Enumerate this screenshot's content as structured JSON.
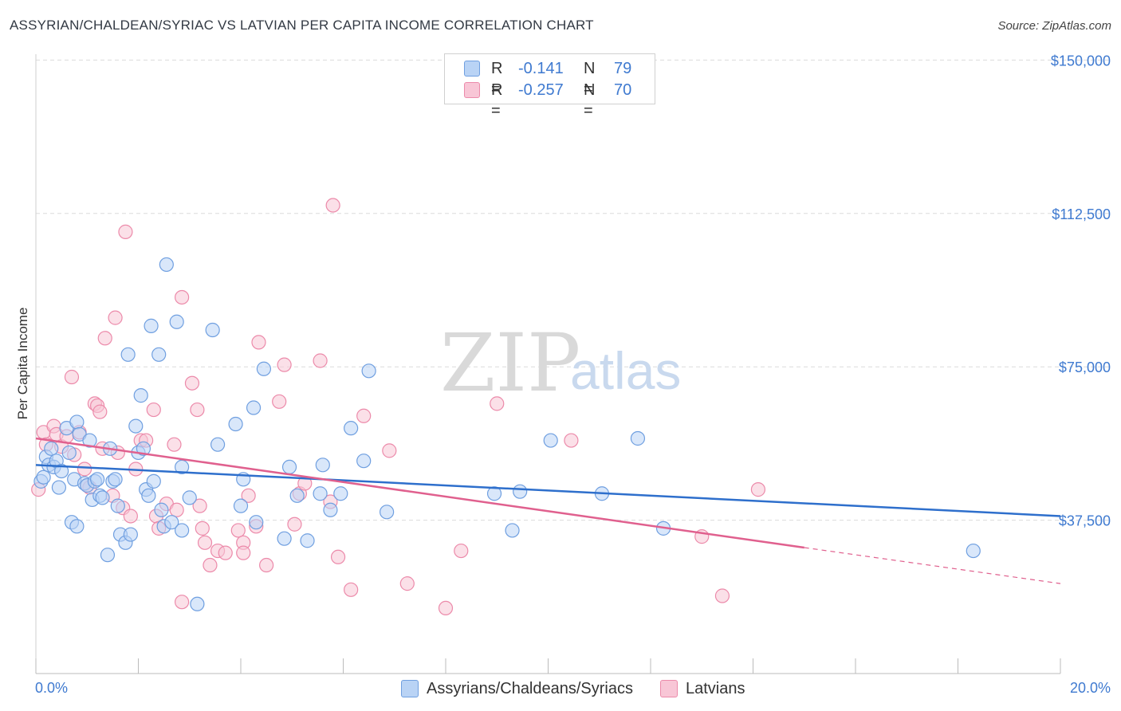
{
  "title": "ASSYRIAN/CHALDEAN/SYRIAC VS LATVIAN PER CAPITA INCOME CORRELATION CHART",
  "source": "Source: ZipAtlas.com",
  "watermark": {
    "zip": "ZIP",
    "atlas": "atlas"
  },
  "legend": {
    "rows": [
      {
        "r_label": "R =",
        "r_value": "-0.141",
        "n_label": "N =",
        "n_value": "79"
      },
      {
        "r_label": "R =",
        "r_value": "-0.257",
        "n_label": "N =",
        "n_value": "70"
      }
    ]
  },
  "bottom_legend": [
    {
      "label": "Assyrians/Chaldeans/Syriacs"
    },
    {
      "label": "Latvians"
    }
  ],
  "colors": {
    "blue_fill": "#b9d3f5",
    "blue_stroke": "#6f9fe0",
    "blue_line": "#2e6fcc",
    "pink_fill": "#f8c6d6",
    "pink_stroke": "#ec8aaa",
    "pink_line": "#e0608e",
    "tick_text": "#3f7ad0",
    "grid": "#dcdcdc"
  },
  "chart_data": {
    "type": "scatter",
    "title": "ASSYRIAN/CHALDEAN/SYRIAC VS LATVIAN PER CAPITA INCOME CORRELATION CHART",
    "xlabel": "",
    "ylabel": "Per Capita Income",
    "xlim": [
      0,
      20
    ],
    "ylim": [
      0,
      153000
    ],
    "x_tick_labels": [
      "0.0%",
      "20.0%"
    ],
    "y_ticks": [
      37500,
      75000,
      112500,
      150000
    ],
    "y_tick_labels": [
      "$37,500",
      "$75,000",
      "$112,500",
      "$150,000"
    ],
    "grid": "horizontal dashed",
    "legend_position": "top-center",
    "series": [
      {
        "name": "Assyrians/Chaldeans/Syriacs",
        "points": [
          [
            0.1,
            47000
          ],
          [
            0.15,
            48000
          ],
          [
            0.2,
            53000
          ],
          [
            0.25,
            51000
          ],
          [
            0.3,
            55000
          ],
          [
            0.35,
            50500
          ],
          [
            0.4,
            52000
          ],
          [
            0.45,
            45500
          ],
          [
            0.5,
            49500
          ],
          [
            0.6,
            60000
          ],
          [
            0.65,
            54000
          ],
          [
            0.7,
            37000
          ],
          [
            0.75,
            47500
          ],
          [
            0.8,
            36000
          ],
          [
            0.8,
            61500
          ],
          [
            0.85,
            58500
          ],
          [
            0.95,
            46500
          ],
          [
            1.0,
            46000
          ],
          [
            1.05,
            57000
          ],
          [
            1.1,
            42500
          ],
          [
            1.15,
            47000
          ],
          [
            1.2,
            47500
          ],
          [
            1.25,
            43500
          ],
          [
            1.3,
            43000
          ],
          [
            1.4,
            29000
          ],
          [
            1.45,
            55000
          ],
          [
            1.5,
            47000
          ],
          [
            1.55,
            47500
          ],
          [
            1.6,
            41000
          ],
          [
            1.65,
            34000
          ],
          [
            1.75,
            32000
          ],
          [
            1.8,
            78000
          ],
          [
            1.85,
            34000
          ],
          [
            1.95,
            60500
          ],
          [
            2.0,
            54000
          ],
          [
            2.05,
            68000
          ],
          [
            2.1,
            55000
          ],
          [
            2.15,
            45000
          ],
          [
            2.2,
            43500
          ],
          [
            2.25,
            85000
          ],
          [
            2.3,
            47000
          ],
          [
            2.4,
            78000
          ],
          [
            2.45,
            40000
          ],
          [
            2.5,
            36000
          ],
          [
            2.55,
            100000
          ],
          [
            2.65,
            37000
          ],
          [
            2.75,
            86000
          ],
          [
            2.85,
            50500
          ],
          [
            2.85,
            35000
          ],
          [
            3.0,
            43000
          ],
          [
            3.15,
            17000
          ],
          [
            3.45,
            84000
          ],
          [
            3.55,
            56000
          ],
          [
            3.9,
            61000
          ],
          [
            4.0,
            41000
          ],
          [
            4.05,
            47500
          ],
          [
            4.25,
            65000
          ],
          [
            4.3,
            37000
          ],
          [
            4.45,
            74500
          ],
          [
            4.85,
            33000
          ],
          [
            4.95,
            50500
          ],
          [
            5.1,
            43500
          ],
          [
            5.3,
            32500
          ],
          [
            5.55,
            44000
          ],
          [
            5.6,
            51000
          ],
          [
            5.75,
            40000
          ],
          [
            5.95,
            44000
          ],
          [
            6.15,
            60000
          ],
          [
            6.4,
            52000
          ],
          [
            6.5,
            74000
          ],
          [
            6.85,
            39500
          ],
          [
            8.95,
            44000
          ],
          [
            9.3,
            35000
          ],
          [
            10.05,
            57000
          ],
          [
            11.05,
            44000
          ],
          [
            11.75,
            57500
          ],
          [
            12.25,
            35500
          ],
          [
            18.3,
            30000
          ],
          [
            9.45,
            44500
          ]
        ]
      },
      {
        "name": "Latvians",
        "points": [
          [
            0.05,
            45000
          ],
          [
            0.15,
            59000
          ],
          [
            0.2,
            56000
          ],
          [
            0.35,
            60500
          ],
          [
            0.4,
            58500
          ],
          [
            0.5,
            55500
          ],
          [
            0.6,
            58000
          ],
          [
            0.7,
            72500
          ],
          [
            0.75,
            53500
          ],
          [
            0.85,
            59000
          ],
          [
            0.95,
            50000
          ],
          [
            1.0,
            46000
          ],
          [
            1.05,
            45500
          ],
          [
            1.15,
            66000
          ],
          [
            1.2,
            65500
          ],
          [
            1.25,
            64000
          ],
          [
            1.3,
            55000
          ],
          [
            1.35,
            82000
          ],
          [
            1.5,
            43500
          ],
          [
            1.55,
            87000
          ],
          [
            1.6,
            54000
          ],
          [
            1.7,
            40500
          ],
          [
            1.75,
            108000
          ],
          [
            1.85,
            38500
          ],
          [
            1.95,
            50000
          ],
          [
            2.05,
            57000
          ],
          [
            2.15,
            57000
          ],
          [
            2.3,
            64500
          ],
          [
            2.35,
            38500
          ],
          [
            2.4,
            35500
          ],
          [
            2.55,
            41500
          ],
          [
            2.7,
            56000
          ],
          [
            2.75,
            40000
          ],
          [
            2.85,
            92000
          ],
          [
            2.85,
            17500
          ],
          [
            3.05,
            71000
          ],
          [
            3.15,
            64500
          ],
          [
            3.2,
            41000
          ],
          [
            3.25,
            35500
          ],
          [
            3.3,
            32000
          ],
          [
            3.4,
            26500
          ],
          [
            3.55,
            30000
          ],
          [
            3.7,
            29500
          ],
          [
            3.95,
            35000
          ],
          [
            4.05,
            32000
          ],
          [
            4.05,
            29500
          ],
          [
            4.15,
            43500
          ],
          [
            4.3,
            36000
          ],
          [
            4.35,
            81000
          ],
          [
            4.5,
            26500
          ],
          [
            4.75,
            66500
          ],
          [
            4.85,
            75500
          ],
          [
            5.05,
            36500
          ],
          [
            5.15,
            44000
          ],
          [
            5.25,
            46500
          ],
          [
            5.55,
            76500
          ],
          [
            5.75,
            42000
          ],
          [
            5.8,
            114500
          ],
          [
            5.9,
            28500
          ],
          [
            6.15,
            20500
          ],
          [
            6.4,
            63000
          ],
          [
            6.9,
            54500
          ],
          [
            7.25,
            22000
          ],
          [
            8.0,
            16000
          ],
          [
            8.3,
            30000
          ],
          [
            9.0,
            66000
          ],
          [
            10.45,
            57000
          ],
          [
            13.0,
            33500
          ],
          [
            13.4,
            19000
          ],
          [
            14.1,
            45000
          ]
        ]
      }
    ],
    "trend_lines": [
      {
        "series": "Assyrians/Chaldeans/Syriacs",
        "x": [
          0,
          20
        ],
        "y": [
          51000,
          38500
        ]
      },
      {
        "series": "Latvians",
        "x": [
          0,
          15
        ],
        "y": [
          57500,
          30800
        ]
      },
      {
        "series": "Latvians (extrapolated)",
        "x": [
          15,
          20
        ],
        "y": [
          30800,
          22000
        ]
      }
    ]
  }
}
